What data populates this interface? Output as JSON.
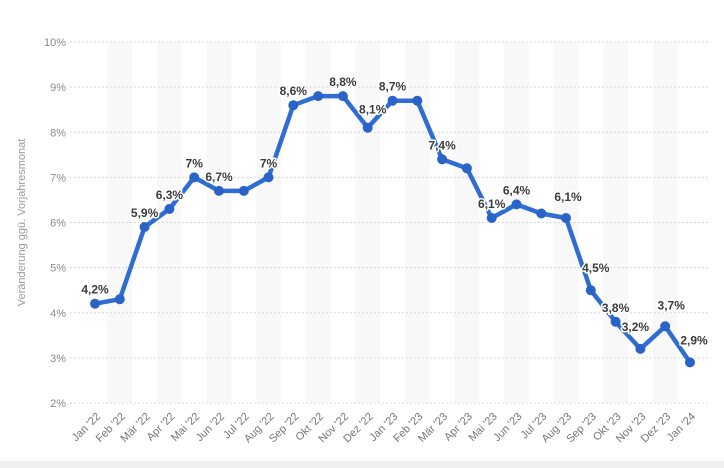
{
  "chart_data": {
    "type": "line",
    "ylabel": "Veränderung ggü. Vorjahresmonat",
    "xlabel": "",
    "categories": [
      "Jan '22",
      "Feb '22",
      "Mär '22",
      "Apr '22",
      "Mai '22",
      "Jun '22",
      "Jul '22",
      "Aug '22",
      "Sep '22",
      "Okt '22",
      "Nov '22",
      "Dez '22",
      "Jan '23",
      "Feb '23",
      "Mär '23",
      "Apr '23",
      "Mai '23",
      "Jun '23",
      "Jul '23",
      "Aug '23",
      "Sep '23",
      "Okt '23",
      "Nov '23",
      "Dez '23",
      "Jan '24"
    ],
    "values": [
      4.2,
      4.3,
      5.9,
      6.3,
      7.0,
      6.7,
      6.7,
      7.0,
      8.6,
      8.8,
      8.8,
      8.1,
      8.7,
      8.7,
      7.4,
      7.2,
      6.1,
      6.4,
      6.2,
      6.1,
      4.5,
      3.8,
      3.2,
      3.7,
      2.9
    ],
    "point_labels": [
      "4,2%",
      null,
      "5,9%",
      "6,3%",
      "7%",
      "6,7%",
      null,
      "7%",
      "8,6%",
      null,
      "8,8%",
      "8,1%",
      "8,7%",
      null,
      "7,4%",
      null,
      "6,1%",
      "6,4%",
      null,
      "6,1%",
      "4,5%",
      "3,8%",
      "3,2%",
      "3,7%",
      "2,9%"
    ],
    "label_offsets": {
      "11": [
        5,
        -4
      ],
      "19": [
        2,
        -7
      ],
      "20": [
        5,
        -8
      ],
      "22": [
        -5,
        -8
      ],
      "23": [
        6,
        -7
      ],
      "24": [
        4,
        -8
      ]
    },
    "ylim": [
      2,
      10
    ],
    "ytick_values": [
      2,
      3,
      4,
      5,
      6,
      7,
      8,
      9,
      10
    ],
    "ytick_labels": [
      "2%",
      "3%",
      "4%",
      "5%",
      "6%",
      "7%",
      "8%",
      "9%",
      "10%"
    ],
    "decimal_separator": ",",
    "grid": "horizontal-dotted",
    "plot_bands": "alternating-vertical",
    "legend": "none",
    "colors": {
      "line": "#2f6dd3",
      "marker": "#2a63c8",
      "grid": "#cbcbcb",
      "band": "#f8f8f8",
      "data_label": "#3c3c3c",
      "tick_label": "#8a8a8a",
      "axis_title": "#9a9a9a",
      "footer_bar": "#f0f0f0",
      "background": "#ffffff"
    }
  }
}
